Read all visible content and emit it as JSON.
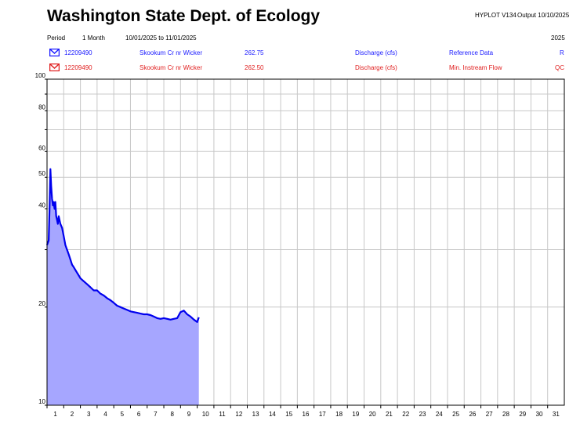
{
  "header": {
    "title": "Washington State Dept. of Ecology",
    "program": "HYPLOT V134",
    "output": "Output 10/10/2025",
    "period_label": "Period",
    "period_value": "1 Month",
    "date_range": "10/01/2025  to  11/01/2025",
    "year": "2025"
  },
  "legend": [
    {
      "station": "12209490",
      "name": "Skookum Cr nr Wicker",
      "value": "262.75",
      "parameter": "Discharge (cfs)",
      "note": "Reference Data",
      "code": "R",
      "color": "#1a1aff",
      "icon": "blue-envelope-icon"
    },
    {
      "station": "12209490",
      "name": "Skookum Cr nr Wicker",
      "value": "262.50",
      "parameter": "Discharge (cfs)",
      "note": "Min. Instream Flow",
      "code": "QC",
      "color": "#e02020",
      "icon": "red-envelope-icon"
    }
  ],
  "chart_data": {
    "type": "area",
    "y_scale": "log",
    "ylim": [
      10,
      100
    ],
    "xlim": [
      1,
      32
    ],
    "ytick_labels": [
      "10",
      "20",
      "40",
      "50",
      "60",
      "80",
      "100"
    ],
    "xtick_labels": [
      "1",
      "2",
      "3",
      "4",
      "5",
      "6",
      "7",
      "8",
      "9",
      "10",
      "11",
      "12",
      "13",
      "14",
      "15",
      "16",
      "17",
      "18",
      "19",
      "20",
      "21",
      "22",
      "23",
      "24",
      "25",
      "26",
      "27",
      "28",
      "29",
      "30",
      "31"
    ],
    "grid": true,
    "fill_color": "#a6a6ff",
    "line_color": "#0000ee",
    "series": [
      {
        "name": "12209490",
        "x": [
          1.0,
          1.1,
          1.15,
          1.2,
          1.25,
          1.3,
          1.35,
          1.4,
          1.45,
          1.5,
          1.55,
          1.6,
          1.65,
          1.7,
          1.8,
          1.9,
          2.0,
          2.1,
          2.2,
          2.3,
          2.4,
          2.5,
          2.6,
          2.7,
          2.8,
          2.9,
          3.0,
          3.2,
          3.4,
          3.6,
          3.8,
          4.0,
          4.2,
          4.4,
          4.6,
          4.8,
          5.0,
          5.2,
          5.4,
          5.6,
          5.8,
          6.0,
          6.2,
          6.4,
          6.6,
          6.8,
          7.0,
          7.2,
          7.4,
          7.6,
          7.8,
          8.0,
          8.2,
          8.4,
          8.6,
          8.8,
          9.0,
          9.2,
          9.4,
          9.6,
          9.8,
          10.0,
          10.1
        ],
        "y": [
          31.0,
          32.0,
          40.0,
          53.0,
          47.0,
          43.0,
          41.0,
          42.0,
          40.0,
          42.0,
          38.0,
          37.0,
          36.0,
          38.0,
          36.0,
          35.0,
          33.0,
          31.0,
          30.0,
          29.0,
          28.0,
          27.0,
          26.5,
          26.0,
          25.5,
          25.0,
          24.5,
          24.0,
          23.5,
          23.0,
          22.5,
          22.5,
          22.0,
          21.7,
          21.3,
          21.0,
          20.6,
          20.2,
          20.0,
          19.8,
          19.6,
          19.4,
          19.3,
          19.2,
          19.1,
          19.0,
          19.0,
          18.9,
          18.7,
          18.5,
          18.4,
          18.5,
          18.4,
          18.3,
          18.4,
          18.5,
          19.3,
          19.5,
          19.0,
          18.7,
          18.3,
          18.0,
          18.6
        ]
      }
    ]
  }
}
